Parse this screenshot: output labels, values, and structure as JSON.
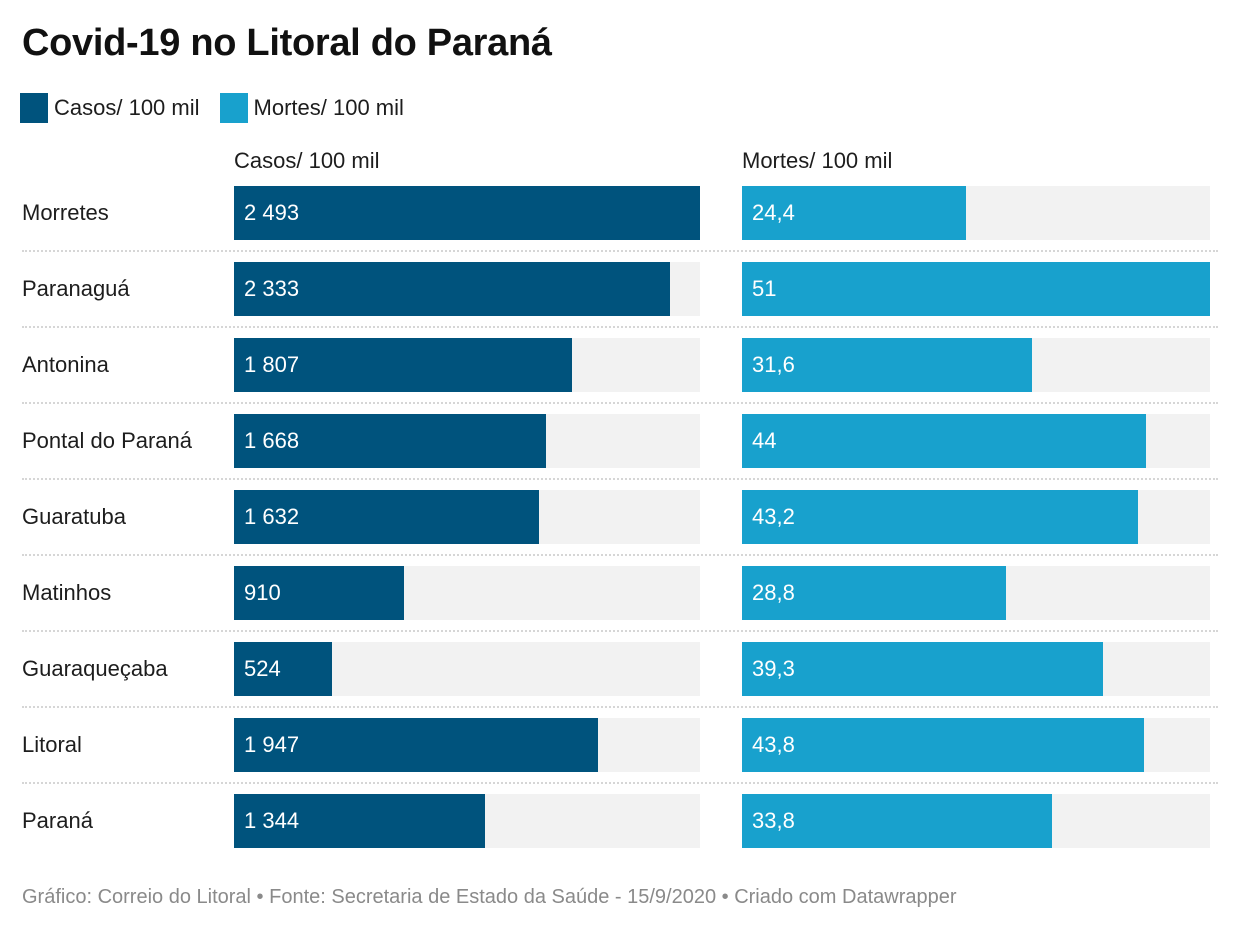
{
  "chart_data": {
    "type": "bar",
    "title": "Covid-19 no Litoral do Paraná",
    "legend": {
      "placement": "top-left",
      "items": [
        {
          "label": "Casos/ 100 mil",
          "color": "#00537d"
        },
        {
          "label": "Mortes/ 100 mil",
          "color": "#18a1cd"
        }
      ]
    },
    "columns": [
      {
        "header": "Casos/ 100 mil",
        "max": 2493,
        "color": "#00537d"
      },
      {
        "header": "Mortes/ 100 mil",
        "max": 51,
        "color": "#18a1cd"
      }
    ],
    "categories": [
      "Morretes",
      "Paranaguá",
      "Antonina",
      "Pontal do Paraná",
      "Guaratuba",
      "Matinhos",
      "Guaraqueçaba",
      "Litoral",
      "Paraná"
    ],
    "series": [
      {
        "name": "Casos/ 100 mil",
        "values": [
          2493,
          2333,
          1807,
          1668,
          1632,
          910,
          524,
          1947,
          1344
        ],
        "labels": [
          "2 493",
          "2 333",
          "1 807",
          "1 668",
          "1 632",
          "910",
          "524",
          "1 947",
          "1 344"
        ]
      },
      {
        "name": "Mortes/ 100 mil",
        "values": [
          24.4,
          51,
          31.6,
          44,
          43.2,
          28.8,
          39.3,
          43.8,
          33.8
        ],
        "labels": [
          "24,4",
          "51",
          "31,6",
          "44",
          "43,2",
          "28,8",
          "39,3",
          "43,8",
          "33,8"
        ]
      }
    ],
    "footer": "Gráfico: Correio do Litoral • Fonte: Secretaria de Estado da Saúde - 15/9/2020 • Criado com Datawrapper"
  }
}
